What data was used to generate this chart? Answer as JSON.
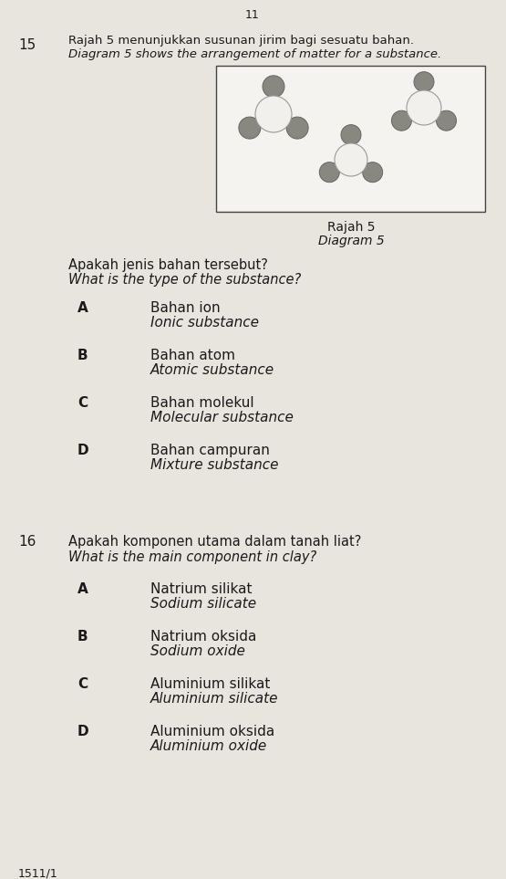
{
  "page_number": "11",
  "bg_color": "#d6d2ca",
  "paper_color": "#e8e5df",
  "q15_number": "15",
  "q15_text_line1": "Rajah 5 menunjukkan susunan jirim bagi sesuatu bahan.",
  "q15_text_line2": "Diagram 5 shows the arrangement of matter for a substance.",
  "diagram_caption_line1": "Rajah 5",
  "diagram_caption_line2": "Diagram 5",
  "q15_question_line1": "Apakah jenis bahan tersebut?",
  "q15_question_line2": "What is the type of the substance?",
  "q15_options": [
    [
      "A",
      "Bahan ion",
      "Ionic substance"
    ],
    [
      "B",
      "Bahan atom",
      "Atomic substance"
    ],
    [
      "C",
      "Bahan molekul",
      "Molecular substance"
    ],
    [
      "D",
      "Bahan campuran",
      "Mixture substance"
    ]
  ],
  "q16_number": "16",
  "q16_text_line1": "Apakah komponen utama dalam tanah liat?",
  "q16_text_line2": "What is the main component in clay?",
  "q16_options": [
    [
      "A",
      "Natrium silikat",
      "Sodium silicate"
    ],
    [
      "B",
      "Natrium oksida",
      "Sodium oxide"
    ],
    [
      "C",
      "Aluminium silikat",
      "Aluminium silicate"
    ],
    [
      "D",
      "Aluminium oksida",
      "Aluminium oxide"
    ]
  ],
  "footer": "1511/1",
  "large_atom_color": "#f2f0ed",
  "large_atom_edge": "#999999",
  "small_atom_color": "#888880",
  "small_atom_edge": "#666660",
  "diagram_box_color": "#f5f3ef",
  "diagram_box_edge": "#444444",
  "text_color": "#1a1a1a",
  "num_color": "#222222"
}
